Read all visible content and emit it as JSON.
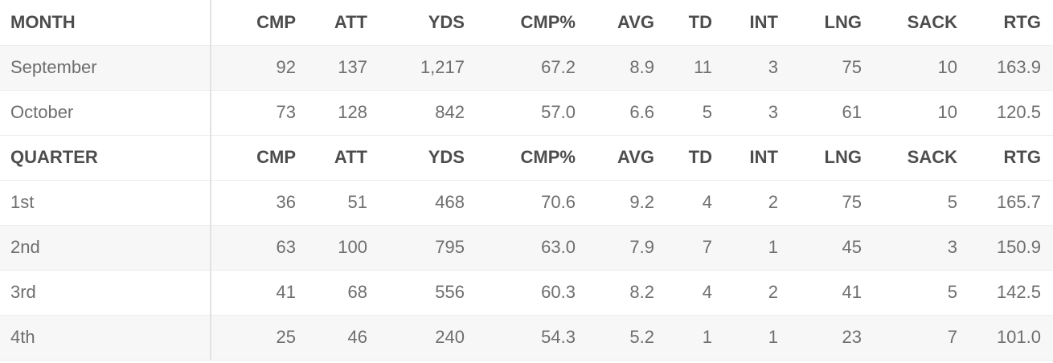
{
  "columns": [
    "CMP",
    "ATT",
    "YDS",
    "CMP%",
    "AVG",
    "TD",
    "INT",
    "LNG",
    "SACK",
    "RTG"
  ],
  "sections": [
    {
      "title": "MONTH",
      "rows": [
        {
          "label": "September",
          "values": [
            "92",
            "137",
            "1,217",
            "67.2",
            "8.9",
            "11",
            "3",
            "75",
            "10",
            "163.9"
          ]
        },
        {
          "label": "October",
          "values": [
            "73",
            "128",
            "842",
            "57.0",
            "6.6",
            "5",
            "3",
            "61",
            "10",
            "120.5"
          ]
        }
      ]
    },
    {
      "title": "QUARTER",
      "rows": [
        {
          "label": "1st",
          "values": [
            "36",
            "51",
            "468",
            "70.6",
            "9.2",
            "4",
            "2",
            "75",
            "5",
            "165.7"
          ]
        },
        {
          "label": "2nd",
          "values": [
            "63",
            "100",
            "795",
            "63.0",
            "7.9",
            "7",
            "1",
            "45",
            "3",
            "150.9"
          ]
        },
        {
          "label": "3rd",
          "values": [
            "41",
            "68",
            "556",
            "60.3",
            "8.2",
            "4",
            "2",
            "41",
            "5",
            "142.5"
          ]
        },
        {
          "label": "4th",
          "values": [
            "25",
            "46",
            "240",
            "54.3",
            "5.2",
            "1",
            "1",
            "23",
            "7",
            "101.0"
          ]
        }
      ]
    }
  ]
}
